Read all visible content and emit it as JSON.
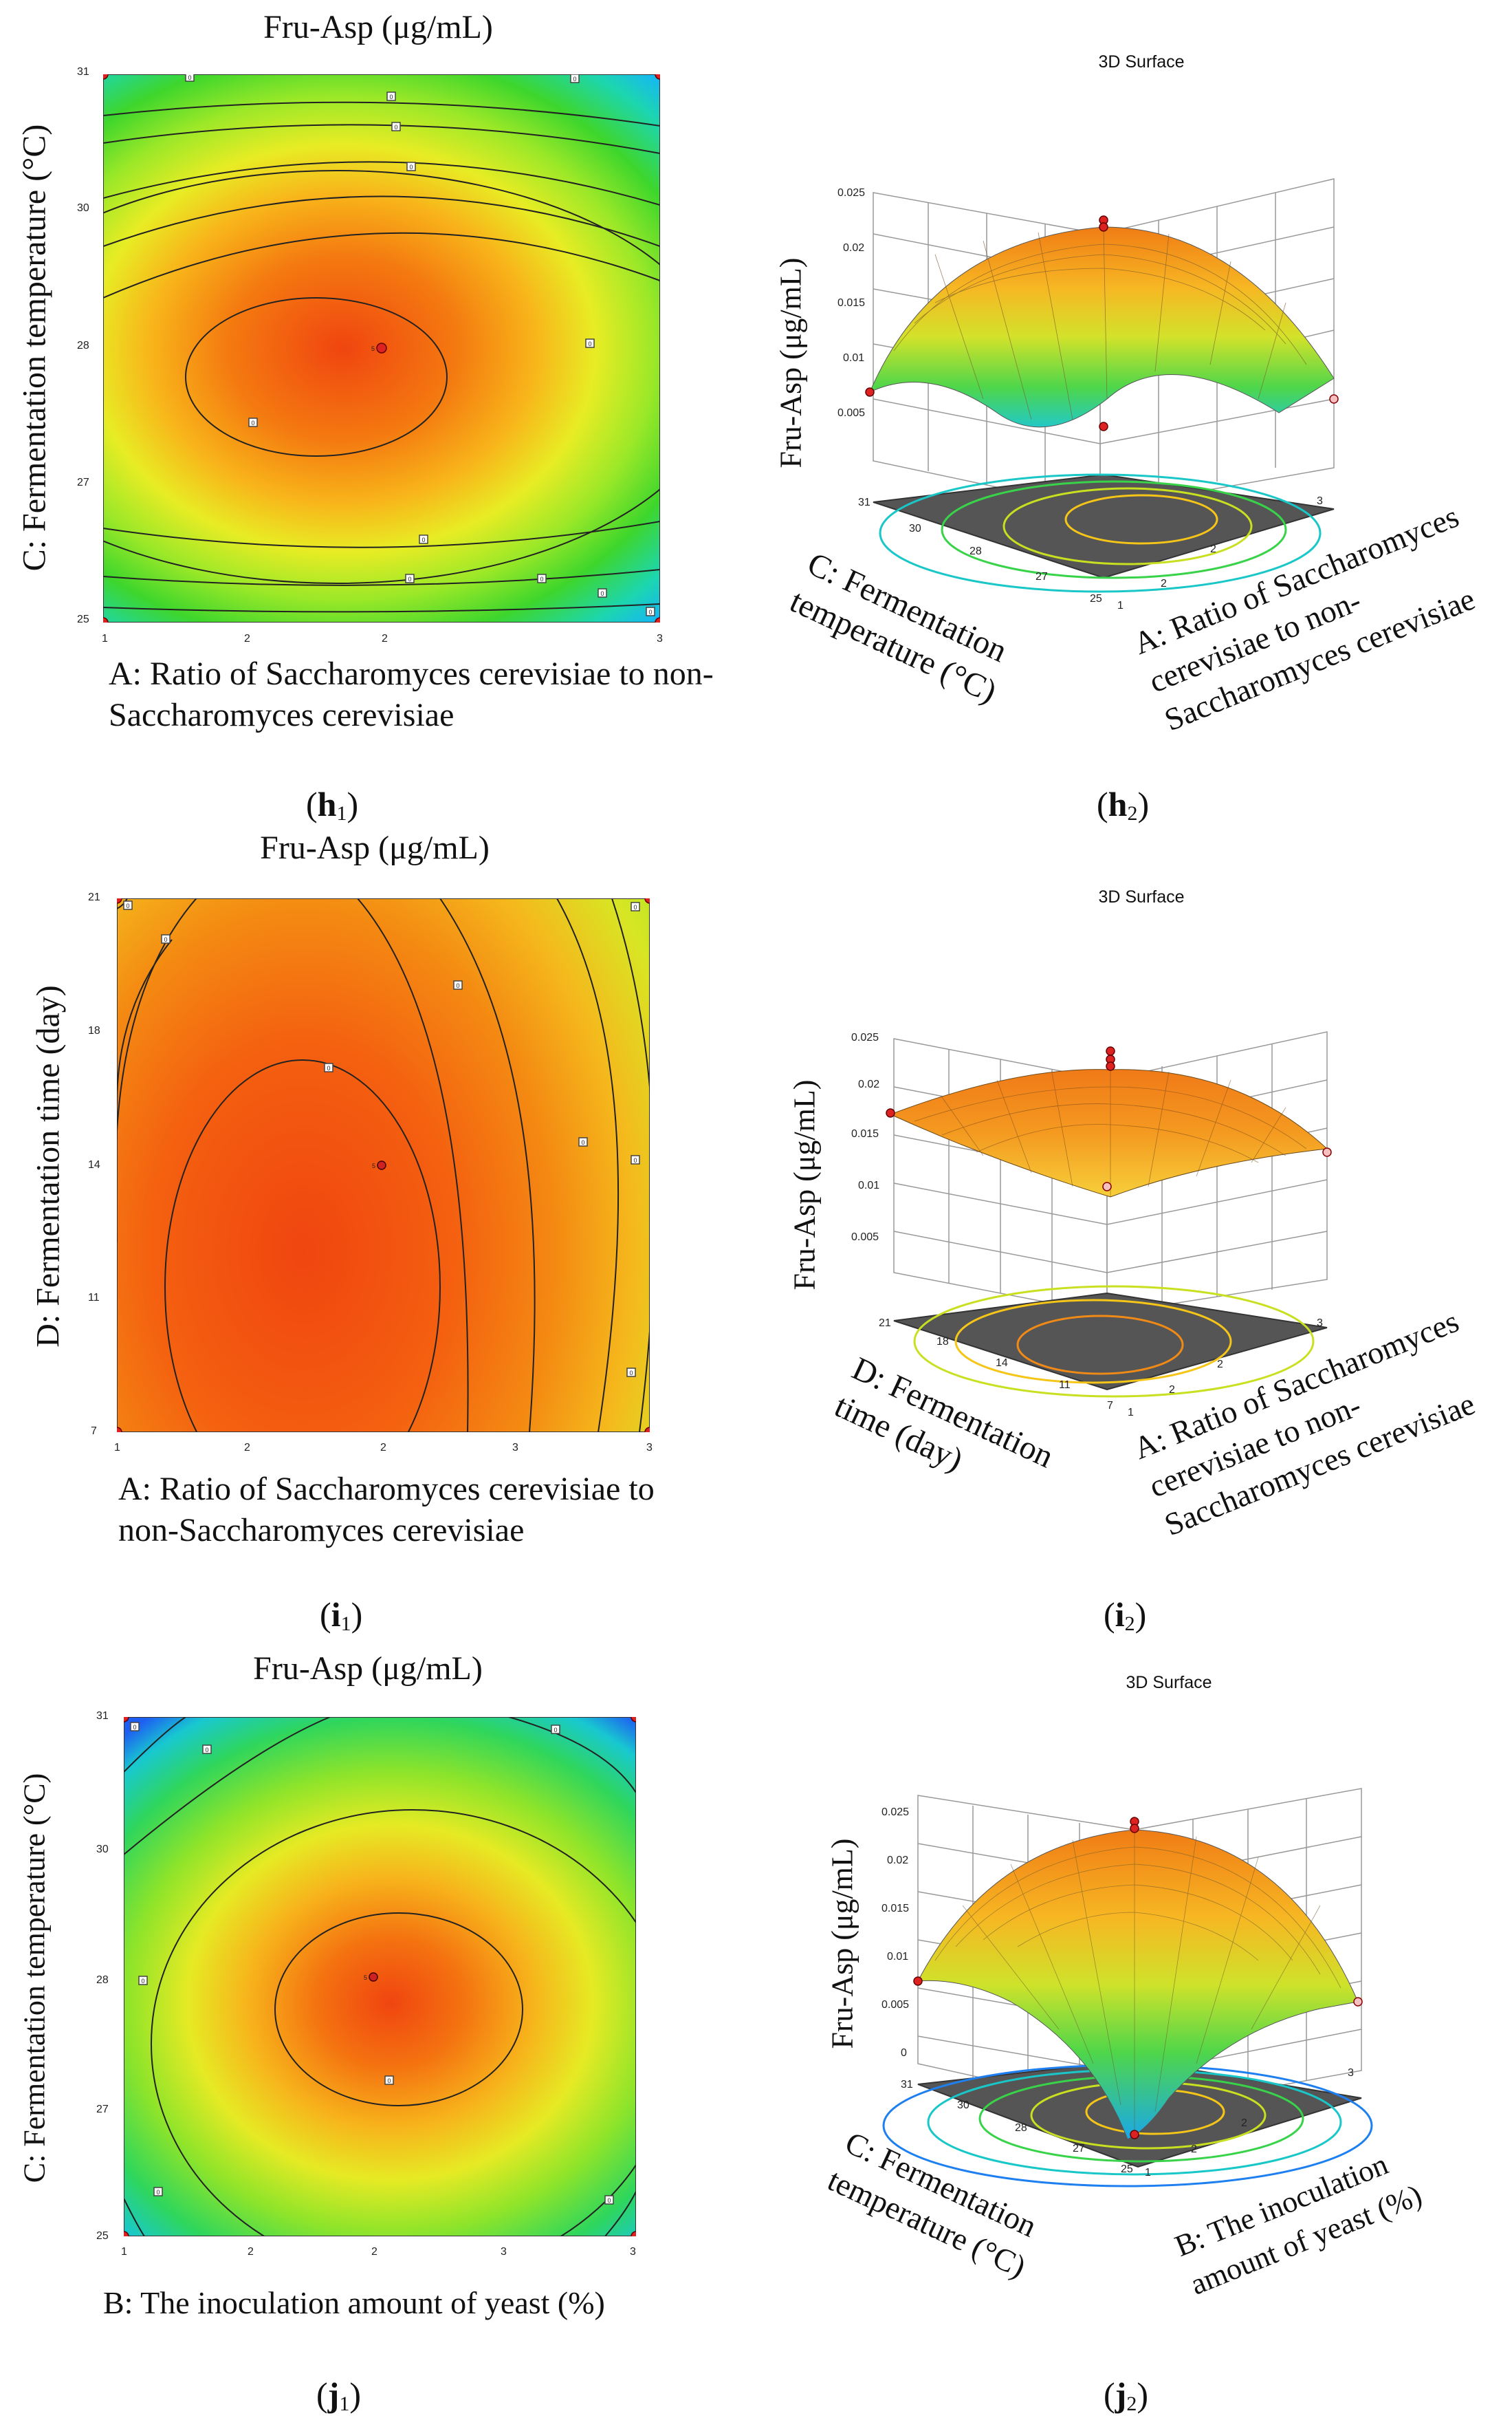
{
  "chart_data": [
    {
      "id": "h1",
      "type": "contour",
      "title": "Fru-Asp (μg/mL)",
      "xlabel": "A: Ratio of Saccharomyces cerevisiae to non-Saccharomyces cerevisiae",
      "ylabel": "C: Fermentation temperature (°C)",
      "xticks": [
        "1",
        "2",
        "2",
        "3"
      ],
      "yticks": [
        "31",
        "30",
        "28",
        "27",
        "25"
      ],
      "x_range": [
        1,
        3
      ],
      "y_range": [
        25,
        31
      ],
      "optimum": {
        "x": 2,
        "y": 28,
        "label": "5"
      },
      "contour_labels": [
        "0",
        "0",
        "0",
        "0",
        "0",
        "0",
        "0",
        "0",
        "0",
        "0",
        "0",
        "0"
      ],
      "design_points": [
        [
          1,
          31
        ],
        [
          3,
          31
        ],
        [
          1,
          25
        ],
        [
          3,
          25
        ],
        [
          2,
          28
        ]
      ],
      "sublabel": {
        "letter": "h",
        "index": "1"
      }
    },
    {
      "id": "h2",
      "type": "surface3d",
      "title": "3D Surface",
      "zlabel": "Fru-Asp (μg/mL)",
      "xlabel": "A: Ratio of Saccharomyces cerevisiae to non-Saccharomyces cerevisiae",
      "ylabel": "C: Fermentation temperature (°C)",
      "zticks": [
        "0.025",
        "0.02",
        "0.015",
        "0.01",
        "0.005"
      ],
      "xticks": [
        "1",
        "2",
        "2",
        "3"
      ],
      "yticks": [
        "31",
        "30",
        "28",
        "27",
        "25"
      ],
      "sublabel": {
        "letter": "h",
        "index": "2"
      }
    },
    {
      "id": "i1",
      "type": "contour",
      "title": "Fru-Asp (μg/mL)",
      "xlabel": "A: Ratio of Saccharomyces cerevisiae to non-Saccharomyces cerevisiae",
      "ylabel": "D: Fermentation time (day)",
      "xticks": [
        "1",
        "2",
        "2",
        "3",
        "3"
      ],
      "yticks": [
        "21",
        "18",
        "14",
        "11",
        "7"
      ],
      "x_range": [
        1,
        3
      ],
      "y_range": [
        7,
        21
      ],
      "optimum": {
        "x": 2,
        "y": 14,
        "label": "5"
      },
      "contour_labels": [
        "0",
        "0",
        "0",
        "0",
        "0",
        "0",
        "0",
        "0",
        "0"
      ],
      "design_points": [
        [
          1,
          21
        ],
        [
          3,
          21
        ],
        [
          1,
          7
        ],
        [
          3,
          7
        ],
        [
          2,
          14
        ]
      ],
      "sublabel": {
        "letter": "i",
        "index": "1"
      }
    },
    {
      "id": "i2",
      "type": "surface3d",
      "title": "3D Surface",
      "zlabel": "Fru-Asp (μg/mL)",
      "xlabel": "A: Ratio of Saccharomyces cerevisiae to non-Saccharomyces cerevisiae",
      "ylabel": "D: Fermentation time (day)",
      "zticks": [
        "0.025",
        "0.02",
        "0.015",
        "0.01",
        "0.005"
      ],
      "xticks": [
        "1",
        "2",
        "2",
        "3"
      ],
      "yticks": [
        "21",
        "18",
        "14",
        "11",
        "7"
      ],
      "sublabel": {
        "letter": "i",
        "index": "2"
      }
    },
    {
      "id": "j1",
      "type": "contour",
      "title": "Fru-Asp (μg/mL)",
      "xlabel": "B: The inoculation amount of yeast (%)",
      "ylabel": "C: Fermentation temperature (°C)",
      "xticks": [
        "1",
        "2",
        "2",
        "3",
        "3"
      ],
      "yticks": [
        "31",
        "30",
        "28",
        "27",
        "25"
      ],
      "x_range": [
        1,
        3
      ],
      "y_range": [
        25,
        31
      ],
      "optimum": {
        "x": 2,
        "y": 28,
        "label": "5"
      },
      "contour_labels": [
        "0",
        "0",
        "0",
        "0",
        "0",
        "0",
        "0",
        "0"
      ],
      "design_points": [
        [
          1,
          31
        ],
        [
          3,
          31
        ],
        [
          1,
          25
        ],
        [
          3,
          25
        ],
        [
          2,
          28
        ]
      ],
      "sublabel": {
        "letter": "j",
        "index": "1"
      }
    },
    {
      "id": "j2",
      "type": "surface3d",
      "title": "3D Surface",
      "zlabel": "Fru-Asp (μg/mL)",
      "xlabel": "B: The inoculation amount of yeast (%)",
      "ylabel": "C: Fermentation temperature (°C)",
      "zticks": [
        "0.025",
        "0.02",
        "0.015",
        "0.01",
        "0.005",
        "0"
      ],
      "xticks": [
        "1",
        "2",
        "2",
        "3"
      ],
      "yticks": [
        "31",
        "30",
        "28",
        "27",
        "25"
      ],
      "sublabel": {
        "letter": "j",
        "index": "2"
      }
    }
  ]
}
